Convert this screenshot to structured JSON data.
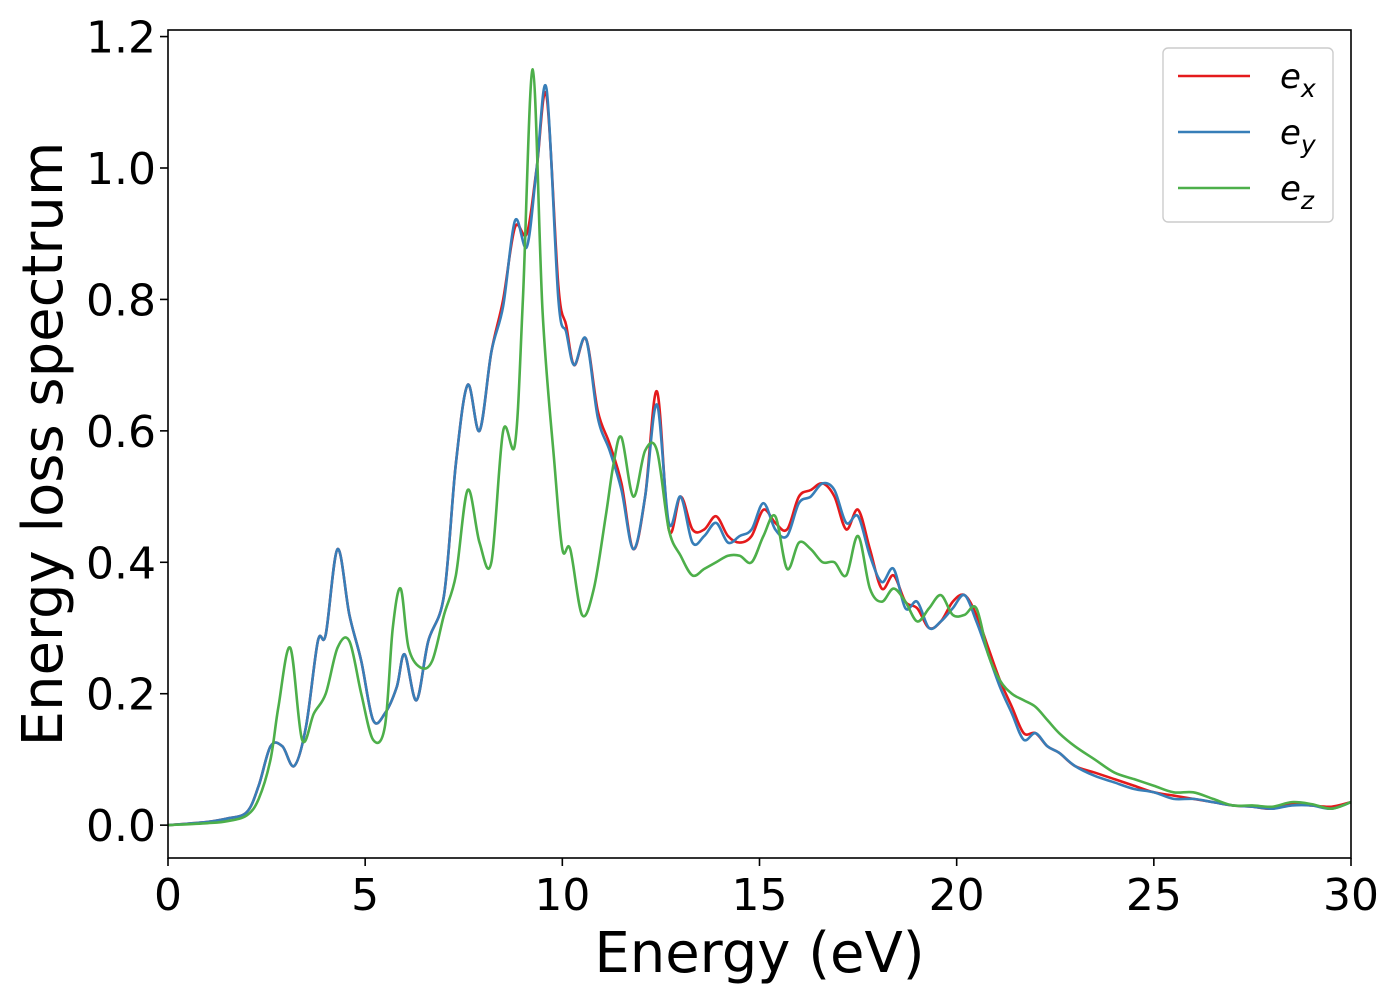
{
  "chart_data": {
    "type": "line",
    "title": "",
    "xlabel": "Energy (eV)",
    "ylabel": "Energy loss spectrum",
    "xlim": [
      0,
      30
    ],
    "ylim": [
      -0.05,
      1.21
    ],
    "xticks": [
      0,
      5,
      10,
      15,
      20,
      25,
      30
    ],
    "xtick_labels": [
      "0",
      "5",
      "10",
      "15",
      "20",
      "25",
      "30"
    ],
    "yticks": [
      0.0,
      0.2,
      0.4,
      0.6,
      0.8,
      1.0,
      1.2
    ],
    "ytick_labels": [
      "0.0",
      "0.2",
      "0.4",
      "0.6",
      "0.8",
      "1.0",
      "1.2"
    ],
    "grid": false,
    "legend_position": "top-right",
    "series": [
      {
        "name": "e",
        "subscript": "x",
        "color": "#e41a1c",
        "x": [
          0,
          1,
          1.5,
          2,
          2.3,
          2.6,
          2.9,
          3.2,
          3.5,
          3.8,
          4.0,
          4.3,
          4.6,
          4.9,
          5.2,
          5.5,
          5.8,
          6.0,
          6.3,
          6.6,
          7.0,
          7.3,
          7.6,
          7.9,
          8.2,
          8.5,
          8.8,
          9.1,
          9.35,
          9.6,
          9.9,
          10.1,
          10.3,
          10.6,
          10.9,
          11.2,
          11.5,
          11.8,
          12.1,
          12.4,
          12.7,
          13.0,
          13.3,
          13.6,
          13.9,
          14.2,
          14.5,
          14.8,
          15.1,
          15.4,
          15.7,
          16.0,
          16.3,
          16.6,
          16.9,
          17.2,
          17.5,
          17.8,
          18.1,
          18.4,
          18.7,
          19.0,
          19.3,
          19.6,
          19.9,
          20.2,
          20.5,
          20.8,
          21.1,
          21.4,
          21.7,
          22.0,
          22.3,
          22.6,
          23,
          23.5,
          24,
          24.5,
          25,
          25.5,
          26,
          26.5,
          27,
          27.5,
          28,
          28.5,
          29,
          29.5,
          30
        ],
        "y": [
          0.0,
          0.005,
          0.01,
          0.02,
          0.06,
          0.12,
          0.12,
          0.09,
          0.15,
          0.28,
          0.29,
          0.42,
          0.32,
          0.25,
          0.16,
          0.17,
          0.21,
          0.26,
          0.19,
          0.28,
          0.35,
          0.55,
          0.67,
          0.6,
          0.72,
          0.8,
          0.91,
          0.9,
          1.0,
          1.11,
          0.82,
          0.76,
          0.7,
          0.74,
          0.63,
          0.58,
          0.52,
          0.42,
          0.5,
          0.66,
          0.45,
          0.5,
          0.45,
          0.45,
          0.47,
          0.44,
          0.43,
          0.44,
          0.48,
          0.46,
          0.45,
          0.5,
          0.51,
          0.52,
          0.5,
          0.45,
          0.48,
          0.42,
          0.36,
          0.38,
          0.34,
          0.33,
          0.3,
          0.31,
          0.34,
          0.35,
          0.32,
          0.27,
          0.22,
          0.18,
          0.14,
          0.14,
          0.12,
          0.11,
          0.09,
          0.08,
          0.07,
          0.06,
          0.05,
          0.045,
          0.04,
          0.035,
          0.03,
          0.028,
          0.025,
          0.032,
          0.03,
          0.028,
          0.035
        ]
      },
      {
        "name": "e",
        "subscript": "y",
        "color": "#377eb8",
        "x": [
          0,
          1,
          1.5,
          2,
          2.3,
          2.6,
          2.9,
          3.2,
          3.5,
          3.8,
          4.0,
          4.3,
          4.6,
          4.9,
          5.2,
          5.5,
          5.8,
          6.0,
          6.3,
          6.6,
          7.0,
          7.3,
          7.6,
          7.9,
          8.2,
          8.5,
          8.8,
          9.1,
          9.35,
          9.6,
          9.9,
          10.1,
          10.3,
          10.6,
          10.9,
          11.2,
          11.5,
          11.8,
          12.1,
          12.4,
          12.7,
          13.0,
          13.3,
          13.6,
          13.9,
          14.2,
          14.5,
          14.8,
          15.1,
          15.4,
          15.7,
          16.0,
          16.3,
          16.6,
          16.9,
          17.2,
          17.5,
          17.8,
          18.1,
          18.4,
          18.7,
          19.0,
          19.3,
          19.6,
          19.9,
          20.2,
          20.5,
          20.8,
          21.1,
          21.4,
          21.7,
          22.0,
          22.3,
          22.6,
          23,
          23.5,
          24,
          24.5,
          25,
          25.5,
          26,
          26.5,
          27,
          27.5,
          28,
          28.5,
          29,
          29.5,
          30
        ],
        "y": [
          0.0,
          0.005,
          0.01,
          0.02,
          0.06,
          0.12,
          0.12,
          0.09,
          0.15,
          0.28,
          0.29,
          0.42,
          0.32,
          0.25,
          0.16,
          0.17,
          0.21,
          0.26,
          0.19,
          0.28,
          0.35,
          0.55,
          0.67,
          0.6,
          0.72,
          0.79,
          0.92,
          0.88,
          1.0,
          1.12,
          0.8,
          0.75,
          0.7,
          0.74,
          0.62,
          0.57,
          0.51,
          0.42,
          0.5,
          0.64,
          0.46,
          0.5,
          0.43,
          0.44,
          0.46,
          0.43,
          0.44,
          0.45,
          0.49,
          0.45,
          0.44,
          0.49,
          0.5,
          0.52,
          0.51,
          0.46,
          0.47,
          0.41,
          0.37,
          0.39,
          0.33,
          0.34,
          0.3,
          0.31,
          0.33,
          0.35,
          0.31,
          0.26,
          0.21,
          0.17,
          0.13,
          0.14,
          0.12,
          0.11,
          0.09,
          0.075,
          0.065,
          0.055,
          0.05,
          0.04,
          0.04,
          0.035,
          0.03,
          0.028,
          0.025,
          0.03,
          0.03,
          0.025,
          0.035
        ]
      },
      {
        "name": "e",
        "subscript": "z",
        "color": "#4daf4a",
        "x": [
          0,
          1,
          1.5,
          2,
          2.3,
          2.6,
          2.8,
          3.1,
          3.4,
          3.7,
          4.0,
          4.3,
          4.6,
          4.9,
          5.2,
          5.5,
          5.7,
          5.9,
          6.1,
          6.4,
          6.7,
          7.0,
          7.3,
          7.6,
          7.9,
          8.2,
          8.5,
          8.8,
          9.0,
          9.25,
          9.5,
          9.8,
          10.0,
          10.2,
          10.5,
          10.8,
          11.1,
          11.3,
          11.5,
          11.8,
          12.1,
          12.4,
          12.7,
          13.0,
          13.3,
          13.6,
          13.9,
          14.2,
          14.5,
          14.8,
          15.1,
          15.4,
          15.7,
          16.0,
          16.3,
          16.6,
          16.9,
          17.2,
          17.5,
          17.8,
          18.1,
          18.4,
          18.7,
          19.0,
          19.3,
          19.6,
          19.9,
          20.2,
          20.5,
          20.8,
          21.1,
          21.4,
          21.7,
          22.0,
          22.3,
          22.6,
          23,
          23.5,
          24,
          24.5,
          25,
          25.5,
          26,
          26.5,
          27,
          27.5,
          28,
          28.5,
          29,
          29.5,
          30
        ],
        "y": [
          0.0,
          0.003,
          0.006,
          0.015,
          0.04,
          0.1,
          0.18,
          0.27,
          0.13,
          0.17,
          0.2,
          0.27,
          0.28,
          0.2,
          0.13,
          0.15,
          0.3,
          0.36,
          0.27,
          0.24,
          0.25,
          0.32,
          0.38,
          0.51,
          0.43,
          0.4,
          0.6,
          0.58,
          0.8,
          1.15,
          0.78,
          0.55,
          0.42,
          0.42,
          0.32,
          0.36,
          0.47,
          0.55,
          0.59,
          0.5,
          0.57,
          0.57,
          0.45,
          0.41,
          0.38,
          0.39,
          0.4,
          0.41,
          0.41,
          0.4,
          0.44,
          0.47,
          0.39,
          0.43,
          0.42,
          0.4,
          0.4,
          0.38,
          0.44,
          0.36,
          0.34,
          0.36,
          0.34,
          0.31,
          0.33,
          0.35,
          0.32,
          0.32,
          0.33,
          0.26,
          0.22,
          0.2,
          0.19,
          0.18,
          0.16,
          0.14,
          0.12,
          0.1,
          0.08,
          0.07,
          0.06,
          0.05,
          0.05,
          0.04,
          0.03,
          0.03,
          0.028,
          0.035,
          0.032,
          0.025,
          0.035
        ]
      }
    ]
  }
}
